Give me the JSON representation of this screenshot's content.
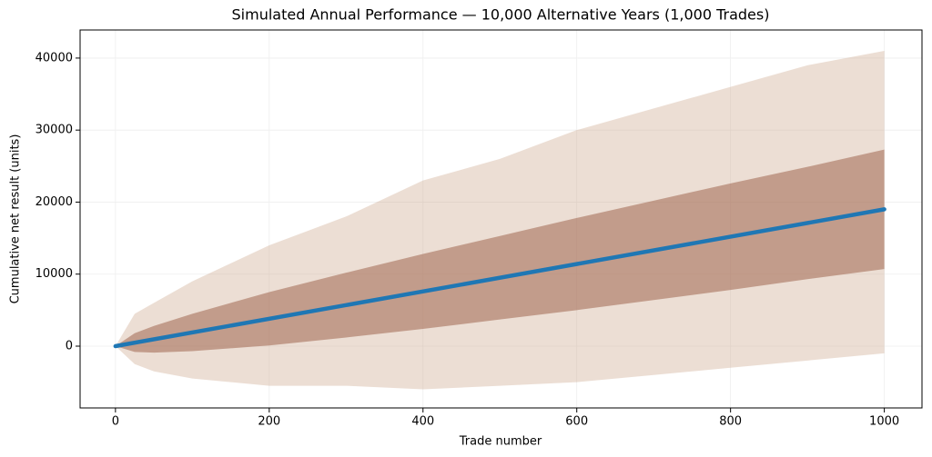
{
  "chart_data": {
    "type": "line",
    "title": "Simulated Annual Performance — 10,000 Alternative Years (1,000 Trades)",
    "x_label": "Trade number",
    "y_label": "Cumulative net result (units)",
    "x": [
      0,
      1000
    ],
    "series": [
      {
        "color": "#1f77b4",
        "values": [
          0,
          19000
        ]
      }
    ],
    "spread": {
      "x": [
        0,
        25,
        50,
        100,
        200,
        300,
        400,
        500,
        600,
        700,
        800,
        900,
        1000
      ],
      "outer": {
        "color": "#c9a184",
        "lower": [
          0,
          -2500,
          -3500,
          -4500,
          -5500,
          -5500,
          -6000,
          -5500,
          -5000,
          -4000,
          -3000,
          -2000,
          -1000
        ],
        "upper": [
          0,
          4500,
          6000,
          9000,
          14000,
          18000,
          23000,
          26000,
          30000,
          33000,
          36000,
          39000,
          41000
        ]
      },
      "inner": {
        "color": "#a6705a",
        "lower": [
          0,
          -800,
          -900,
          -700,
          100,
          1200,
          2400,
          3700,
          5000,
          6400,
          7800,
          9300,
          10700
        ],
        "upper": [
          0,
          1800,
          2800,
          4500,
          7500,
          10200,
          12800,
          15300,
          17800,
          20200,
          22600,
          24900,
          27300
        ]
      }
    },
    "xlim": [
      -46,
      1049
    ],
    "ylim": [
      -8580,
      43900
    ],
    "xticks": [
      0,
      200,
      400,
      600,
      800,
      1000
    ],
    "yticks": [
      0,
      10000,
      20000,
      30000,
      40000
    ],
    "grid": true
  }
}
